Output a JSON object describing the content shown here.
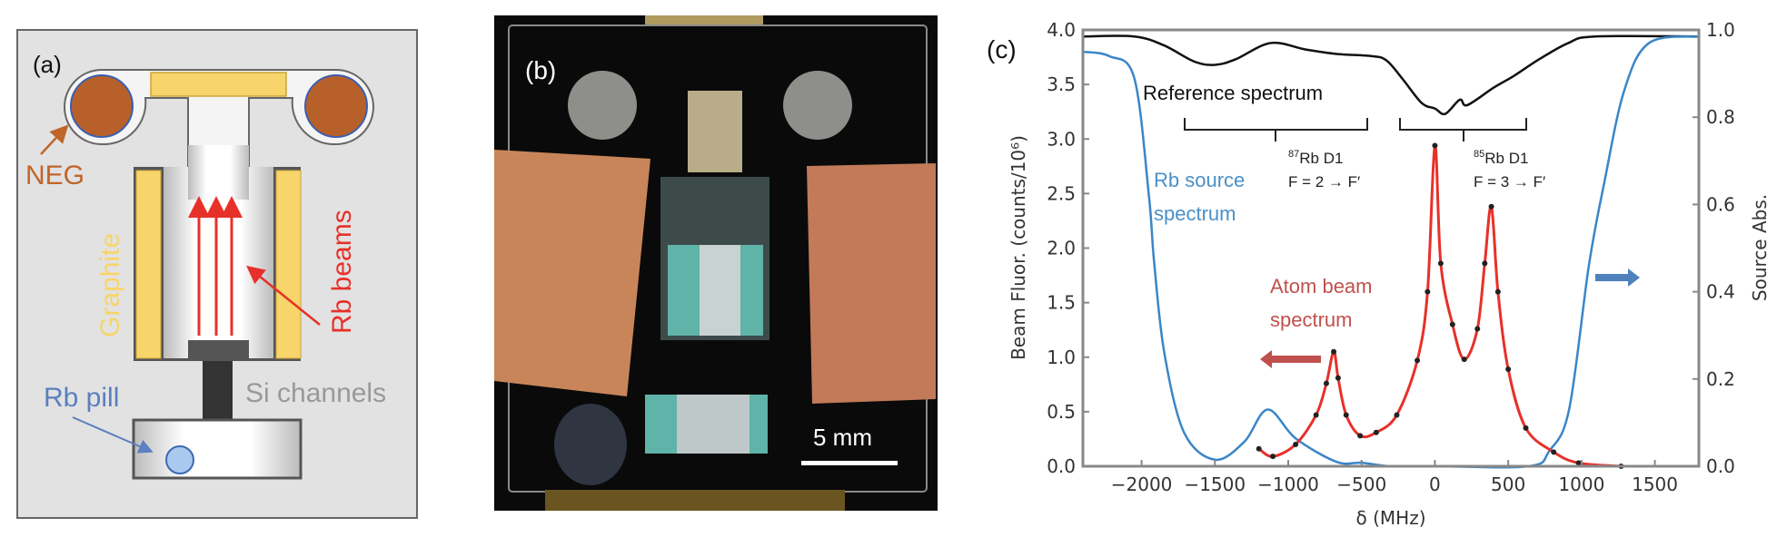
{
  "panel_a": {
    "label": "(a)",
    "neg_label": "NEG",
    "graphite_label": "Graphite",
    "beams_label": "Rb  beams",
    "pill_label": "Rb pill",
    "channels_label": "Si channels",
    "colors": {
      "neg": "#b8602a",
      "graphite": "#f7d56a",
      "beams": "#e8302a",
      "pill": "#a9c9ef",
      "pill_text": "#5b7fc0",
      "channels_text": "#999999",
      "background": "#e2e2e2"
    }
  },
  "panel_b": {
    "label": "(b)",
    "scale_bar_label": "5 mm"
  },
  "chart_data": {
    "type": "line",
    "panel_label": "(c)",
    "xlabel": "δ (MHz)",
    "ylabel": "Beam Fluor. (counts/10⁶)",
    "y2label": "Source Abs.",
    "xlim": [
      -2400,
      1800
    ],
    "ylim": [
      0,
      4.0
    ],
    "y2lim": [
      0,
      1.0
    ],
    "xticks": [
      -2000,
      -1500,
      -1000,
      -500,
      0,
      500,
      1000,
      1500
    ],
    "xtick_labels": [
      "−2000",
      "−1500",
      "−1000",
      "−500",
      "0",
      "500",
      "1000",
      "1500"
    ],
    "yticks": [
      0,
      0.5,
      1.0,
      1.5,
      2.0,
      2.5,
      3.0,
      3.5,
      4.0
    ],
    "ytick_labels": [
      "0.0",
      "0.5",
      "1.0",
      "1.5",
      "2.0",
      "2.5",
      "3.0",
      "3.5",
      "4.0"
    ],
    "y2ticks": [
      0,
      0.2,
      0.4,
      0.6,
      0.8,
      1.0
    ],
    "y2tick_labels": [
      "0.0",
      "0.2",
      "0.4",
      "0.6",
      "0.8",
      "1.0"
    ],
    "grid": false,
    "series": [
      {
        "name": "Reference spectrum",
        "axis": "left",
        "color": "#111111",
        "x": [
          -2400,
          -2050,
          -1850,
          -1640,
          -1500,
          -1360,
          -1120,
          -880,
          -670,
          -430,
          -330,
          -220,
          -90,
          0,
          70,
          170,
          220,
          400,
          540,
          710,
          910,
          1090,
          1800
        ],
        "y": [
          3.94,
          3.94,
          3.86,
          3.71,
          3.68,
          3.73,
          3.88,
          3.82,
          3.78,
          3.76,
          3.72,
          3.55,
          3.33,
          3.28,
          3.23,
          3.36,
          3.31,
          3.47,
          3.58,
          3.73,
          3.88,
          3.94,
          3.94
        ]
      },
      {
        "name": "Rb source spectrum",
        "axis": "right",
        "color": "#3a86c8",
        "x": [
          -2400,
          -2220,
          -2050,
          -1950,
          -1915,
          -1845,
          -1710,
          -1500,
          -1300,
          -1140,
          -950,
          -670,
          -500,
          -300,
          0,
          640,
          780,
          915,
          1050,
          1155,
          1290,
          1460,
          1800
        ],
        "y": [
          0.95,
          0.94,
          0.89,
          0.62,
          0.47,
          0.26,
          0.077,
          0.015,
          0.056,
          0.13,
          0.064,
          0.01,
          0.008,
          0.0,
          0.0,
          0.0,
          0.035,
          0.13,
          0.46,
          0.65,
          0.86,
          0.97,
          0.985
        ]
      },
      {
        "name": "Atom beam spectrum",
        "axis": "left",
        "color": "#e8302a",
        "marker_color": "#222222",
        "x": [
          -1200,
          -1105,
          -950,
          -810,
          -740,
          -690,
          -660,
          -605,
          -510,
          -400,
          -260,
          -120,
          -50,
          0,
          40,
          120,
          200,
          290,
          340,
          385,
          430,
          500,
          620,
          810,
          980,
          1270
        ],
        "y": [
          0.16,
          0.09,
          0.2,
          0.47,
          0.76,
          1.05,
          0.81,
          0.47,
          0.28,
          0.31,
          0.47,
          0.97,
          1.6,
          2.94,
          1.86,
          1.3,
          0.98,
          1.26,
          1.86,
          2.38,
          1.6,
          0.89,
          0.35,
          0.13,
          0.03,
          0.0
        ]
      }
    ],
    "annotations": {
      "reference": "Reference spectrum",
      "rb87_iso": "87",
      "rb87_line": "Rb D1",
      "rb87_transition": "F = 2 → F′",
      "rb85_iso": "85",
      "rb85_line": "Rb D1",
      "rb85_transition": "F = 3 → F′",
      "source_1": "Rb source",
      "source_2": "spectrum",
      "atom_1": "Atom beam",
      "atom_2": "spectrum"
    },
    "arrow_colors": {
      "atom": "#c0504d",
      "source": "#4f81bd"
    }
  }
}
